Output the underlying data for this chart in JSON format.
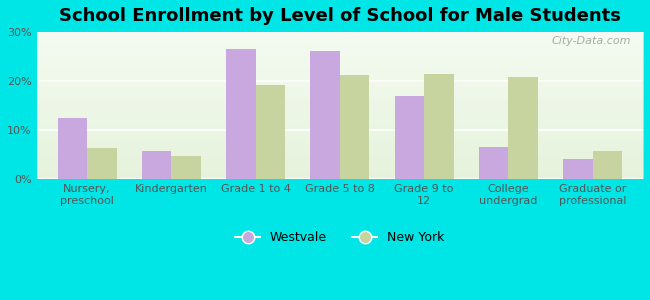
{
  "title": "School Enrollment by Level of School for Male Students",
  "categories": [
    "Nursery,\npreschool",
    "Kindergarten",
    "Grade 1 to 4",
    "Grade 5 to 8",
    "Grade 9 to\n12",
    "College\nundergrad",
    "Graduate or\nprofessional"
  ],
  "westvale": [
    12.5,
    5.8,
    26.5,
    26.2,
    17.0,
    6.5,
    4.2
  ],
  "new_york": [
    6.3,
    4.7,
    19.2,
    21.2,
    21.5,
    20.8,
    5.8
  ],
  "westvale_color": "#c9a8e0",
  "new_york_color": "#c8d4a0",
  "background_color": "#00e5e5",
  "ylim": [
    0,
    30
  ],
  "yticks": [
    0,
    10,
    20,
    30
  ],
  "bar_width": 0.35,
  "legend_labels": [
    "Westvale",
    "New York"
  ],
  "title_fontsize": 13,
  "tick_fontsize": 8,
  "legend_fontsize": 9,
  "watermark": "City-Data.com"
}
